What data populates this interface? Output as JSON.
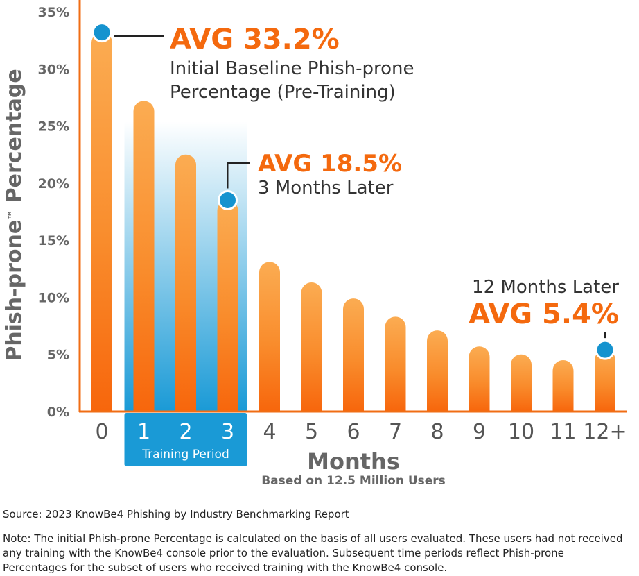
{
  "chart_data": {
    "type": "bar",
    "ylabel": "Phish-prone™ Percentage",
    "xlabel": "Months",
    "subtitle": "Based on 12.5 Million Users",
    "categories": [
      "0",
      "1",
      "2",
      "3",
      "4",
      "5",
      "6",
      "7",
      "8",
      "9",
      "10",
      "11",
      "12+"
    ],
    "values": [
      33.2,
      27.2,
      22.5,
      18.5,
      13.1,
      11.3,
      9.9,
      8.3,
      7.1,
      5.7,
      5.0,
      4.5,
      5.4
    ],
    "ylim": [
      0,
      35
    ],
    "yticks": [
      "0%",
      "5%",
      "10%",
      "15%",
      "20%",
      "25%",
      "30%",
      "35%"
    ],
    "training_period": {
      "label": "Training Period",
      "months": [
        "1",
        "2",
        "3"
      ]
    },
    "annotations": [
      {
        "month": "0",
        "value": 33.2,
        "headline": "AVG 33.2%",
        "line1": "Initial Baseline Phish-prone",
        "line2": "Percentage (Pre-Training)"
      },
      {
        "month": "3",
        "value": 18.5,
        "headline": "AVG 18.5%",
        "line1": "3 Months Later"
      },
      {
        "month": "12+",
        "value": 5.4,
        "headline": "AVG 5.4%",
        "line1": "12 Months Later"
      }
    ],
    "colors": {
      "bar": "#fa6e0f",
      "bar_light": "#fbaa4e",
      "marker": "#1593cf",
      "training": "#1a9ad6",
      "axis": "#f06d14",
      "text": "#666666",
      "headline": "#f4690e"
    }
  },
  "source": "Source: 2023 KnowBe4 Phishing by Industry Benchmarking Report",
  "note": "Note: The initial Phish-prone Percentage is calculated on the basis of all users evaluated. These users had not received any training with the KnowBe4 console prior to the evaluation. Subsequent time periods reflect Phish-prone Percentages for the subset of users who received training with the KnowBe4 console."
}
